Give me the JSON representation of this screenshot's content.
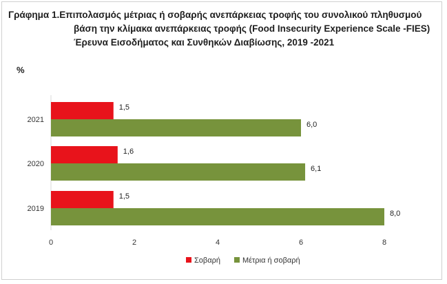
{
  "chart_data": {
    "type": "bar",
    "orientation": "horizontal",
    "title_lines": [
      "Γράφημα 1.Επιπολασμός μέτριας ή σοβαρής ανεπάρκειας τροφής του συνολικού πληθυσμού",
      "βάση την κλίμακα ανεπάρκειας τροφής (Food Insecurity Experience Scale -FIES)",
      "Έρευνα Εισοδήματος και Συνθηκών Διαβίωσης, 2019 -2021"
    ],
    "ylabel": "%",
    "categories": [
      "2021",
      "2020",
      "2019"
    ],
    "series": [
      {
        "name": "Σοβαρή",
        "color": "#e8131b",
        "values": [
          1.5,
          1.6,
          1.5
        ],
        "labels": [
          "1,5",
          "1,6",
          "1,5"
        ]
      },
      {
        "name": "Μέτρια ή σοβαρή",
        "color": "#77933c",
        "values": [
          6.0,
          6.1,
          8.0
        ],
        "labels": [
          "6,0",
          "6,1",
          "8,0"
        ]
      }
    ],
    "xlim": [
      0,
      8
    ],
    "xticks": [
      "0",
      "2",
      "4",
      "6",
      "8"
    ],
    "grid": false,
    "legend_position": "bottom"
  }
}
